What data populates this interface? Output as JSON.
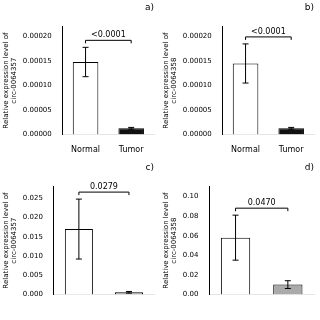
{
  "chart_data": [
    {
      "type": "bar",
      "title": "a)",
      "ylabel": "Relative expression level of\ncirc-0064357",
      "categories": [
        "Normal",
        "Tumor"
      ],
      "values": [
        0.000148,
        1.25e-05
      ],
      "errors": [
        3e-05,
        1.8e-06
      ],
      "colors": [
        "white",
        "#111111"
      ],
      "ylim": [
        0,
        0.00022
      ],
      "yticks": [
        {
          "value": 0,
          "label": "0.00000"
        },
        5e-05,
        {
          "value": 0.0001,
          "label": "0.00010"
        },
        0.00015,
        {
          "value": 0.0002,
          "label": "0.00020"
        }
      ],
      "annotations": [
        "<0.0001"
      ],
      "grid": false
    },
    {
      "type": "bar",
      "title": "b)",
      "ylabel": "Relative expression level of\ncirc-0064358",
      "categories": [
        "Normal",
        "Tumor"
      ],
      "values": [
        0.000145,
        1.25e-05
      ],
      "errors": [
        4e-05,
        1.8e-06
      ],
      "colors": [
        "white",
        "#111111"
      ],
      "ylim": [
        0,
        0.00022
      ],
      "yticks": [
        {
          "value": 0,
          "label": "0.00000"
        },
        5e-05,
        {
          "value": 0.0001,
          "label": "0.00010"
        },
        0.00015,
        {
          "value": 0.0002,
          "label": "0.00020"
        }
      ],
      "annotations": [
        "<0.0001"
      ],
      "grid": false
    },
    {
      "type": "bar",
      "title": "c)",
      "ylabel": "Relative expression level of\ncirc-0064357",
      "categories": [
        null,
        null
      ],
      "values": [
        0.017,
        0.00055
      ],
      "errors": [
        0.0078,
        0.00022
      ],
      "colors": [
        "white",
        "#aaaaaa"
      ],
      "ylim": [
        0,
        0.028
      ],
      "yticks": [
        {
          "value": 0,
          "label": "0.000"
        },
        0.005,
        {
          "value": 0.01,
          "label": "0.010"
        },
        0.015,
        {
          "value": 0.02,
          "label": "0.020"
        },
        0.025
      ],
      "annotations": [
        "0.0279"
      ],
      "grid": false
    },
    {
      "type": "bar",
      "title": "d)",
      "ylabel": "Relative expression level of\ncirc-0064358",
      "categories": [
        null,
        null
      ],
      "values": [
        0.058,
        0.01
      ],
      "errors": [
        0.023,
        0.004
      ],
      "colors": [
        "white",
        "#aaaaaa"
      ],
      "ylim": [
        0,
        0.11
      ],
      "yticks": [
        {
          "value": 0,
          "label": "0.00"
        },
        0.02,
        0.04,
        0.06,
        0.08,
        {
          "value": 0.1,
          "label": "0.10"
        }
      ],
      "annotations": [
        "0.0470"
      ],
      "grid": false
    }
  ]
}
